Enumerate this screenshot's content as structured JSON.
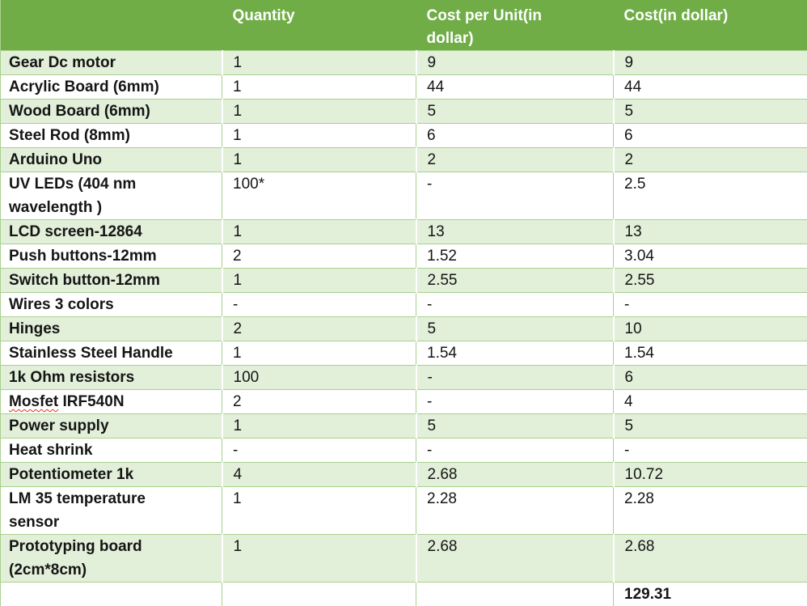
{
  "colors": {
    "header_bg": "#70AD47",
    "band_bg": "#E2EFD9",
    "row_bg": "#FFFFFF",
    "border_green": "#A9D08E",
    "header_text": "#FFFFFF",
    "body_text": "#151515",
    "spellcheck_squiggle": "#E0321E"
  },
  "table": {
    "columns": [
      {
        "label": ""
      },
      {
        "label": "Quantity"
      },
      {
        "label": "Cost per Unit(in\ndollar)"
      },
      {
        "label": "Cost(in dollar)"
      }
    ],
    "rows": [
      {
        "item": "Gear Dc motor",
        "quantity": "1",
        "cost_per_unit": "9",
        "cost": "9"
      },
      {
        "item": "Acrylic Board (6mm)",
        "quantity": "1",
        "cost_per_unit": "44",
        "cost": "44"
      },
      {
        "item": "Wood Board (6mm)",
        "quantity": "1",
        "cost_per_unit": "5",
        "cost": "5"
      },
      {
        "item": "Steel Rod (8mm)",
        "quantity": "1",
        "cost_per_unit": "6",
        "cost": "6"
      },
      {
        "item": "Arduino Uno",
        "quantity": "1",
        "cost_per_unit": "2",
        "cost": "2"
      },
      {
        "item": "UV LEDs (404 nm\nwavelength )",
        "quantity": "100*",
        "cost_per_unit": "-",
        "cost": "2.5"
      },
      {
        "item": "LCD screen-12864",
        "quantity": "1",
        "cost_per_unit": "13",
        "cost": "13"
      },
      {
        "item": "Push buttons-12mm",
        "quantity": "2",
        "cost_per_unit": "1.52",
        "cost": "3.04"
      },
      {
        "item": "Switch button-12mm",
        "quantity": "1",
        "cost_per_unit": "2.55",
        "cost": "2.55"
      },
      {
        "item": "Wires 3 colors",
        "quantity": "-",
        "cost_per_unit": "-",
        "cost": "-"
      },
      {
        "item": "Hinges",
        "quantity": "2",
        "cost_per_unit": "5",
        "cost": "10"
      },
      {
        "item": "Stainless Steel Handle",
        "quantity": "1",
        "cost_per_unit": "1.54",
        "cost": "1.54"
      },
      {
        "item": "1k Ohm resistors",
        "quantity": "100",
        "cost_per_unit": "-",
        "cost": "6"
      },
      {
        "item_parts": {
          "misspelled": "Mosfet",
          "rest": " IRF540N"
        },
        "quantity": "2",
        "cost_per_unit": "-",
        "cost": "4"
      },
      {
        "item": "Power supply",
        "quantity": "1",
        "cost_per_unit": "5",
        "cost": "5"
      },
      {
        "item": "Heat shrink",
        "quantity": "-",
        "cost_per_unit": "-",
        "cost": "-"
      },
      {
        "item": "Potentiometer 1k",
        "quantity": "4",
        "cost_per_unit": "2.68",
        "cost": "10.72"
      },
      {
        "item": "LM 35 temperature\nsensor",
        "quantity": "1",
        "cost_per_unit": "2.28",
        "cost": "2.28"
      },
      {
        "item": "Prototyping board\n(2cm*8cm)",
        "quantity": "1",
        "cost_per_unit": "2.68",
        "cost": "2.68"
      },
      {
        "item": "",
        "quantity": "",
        "cost_per_unit": "",
        "cost": "129.31",
        "cost_bold": true
      }
    ]
  }
}
